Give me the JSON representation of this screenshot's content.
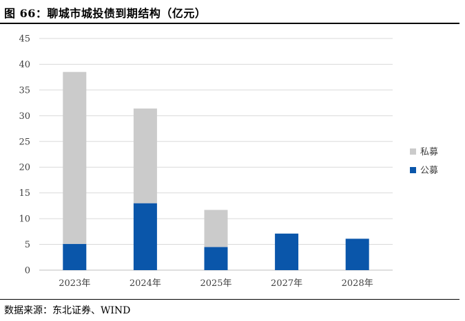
{
  "header": {
    "title": "图 66：聊城市城投债到期结构（亿元）"
  },
  "footer": {
    "source": "数据来源：东北证券、WIND"
  },
  "chart_data": {
    "type": "bar",
    "stacked": true,
    "title": "图 66：聊城市城投债到期结构（亿元）",
    "xlabel": "",
    "ylabel": "",
    "categories": [
      "2023年",
      "2024年",
      "2025年",
      "2027年",
      "2028年"
    ],
    "series": [
      {
        "name": "公募",
        "color": "#0a56aa",
        "values": [
          5.1,
          13.0,
          4.5,
          7.1,
          6.1
        ]
      },
      {
        "name": "私募",
        "color": "#cbcbcb",
        "values": [
          33.4,
          18.4,
          7.2,
          0,
          0
        ]
      }
    ],
    "ylim": [
      0,
      45
    ],
    "yticks": [
      0,
      5,
      10,
      15,
      20,
      25,
      30,
      35,
      40,
      45
    ],
    "grid": true,
    "legend": {
      "position": "right",
      "order": [
        "私募",
        "公募"
      ]
    }
  }
}
